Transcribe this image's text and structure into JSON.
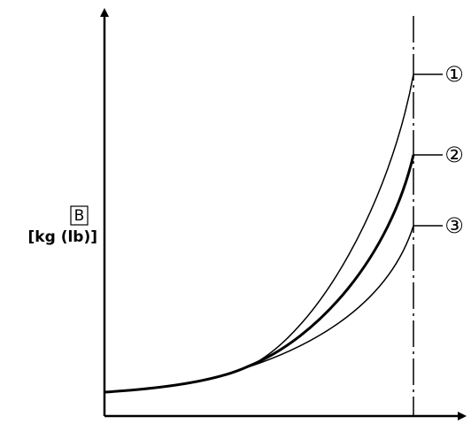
{
  "y_axis": {
    "symbol": "B",
    "unit": "[kg (lb)]"
  },
  "curves": [
    {
      "label": "①"
    },
    {
      "label": "②"
    },
    {
      "label": "③"
    }
  ]
}
